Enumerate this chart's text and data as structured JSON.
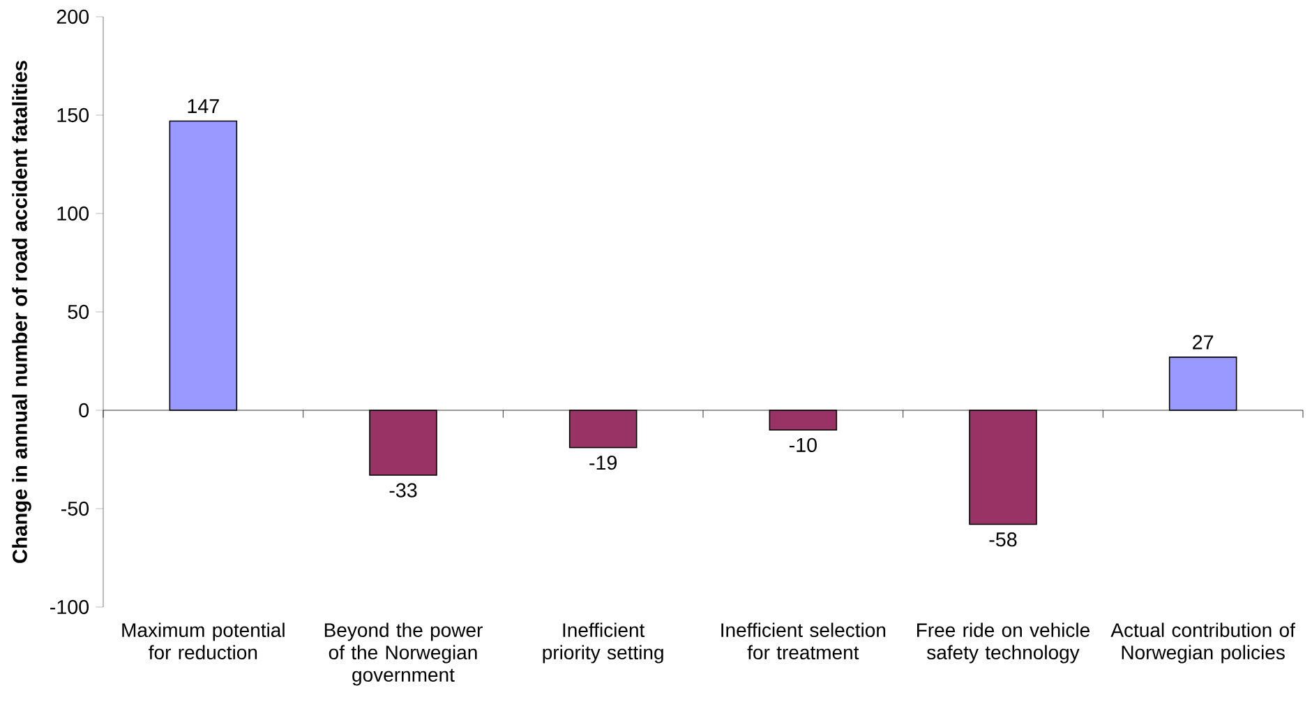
{
  "chart_data": {
    "type": "bar",
    "ylabel": "**Change in annual number of road accident fatalities**",
    "categories": [
      "Maximum potential for reduction",
      "Beyond the power of the Norwegian government",
      "Inefficient priority setting",
      "Inefficient selection for treatment",
      "Free ride on vehicle safety technology",
      "Actual contribution of Norwegian policies"
    ],
    "values": [
      147,
      -33,
      -19,
      -10,
      -58,
      27
    ],
    "colors": [
      "#9999ff",
      "#993366",
      "#993366",
      "#993366",
      "#993366",
      "#9999ff"
    ],
    "ylim": [
      -100,
      200
    ],
    "yticks": [
      -100,
      -50,
      0,
      50,
      100,
      150,
      200
    ],
    "data_labels": true
  }
}
